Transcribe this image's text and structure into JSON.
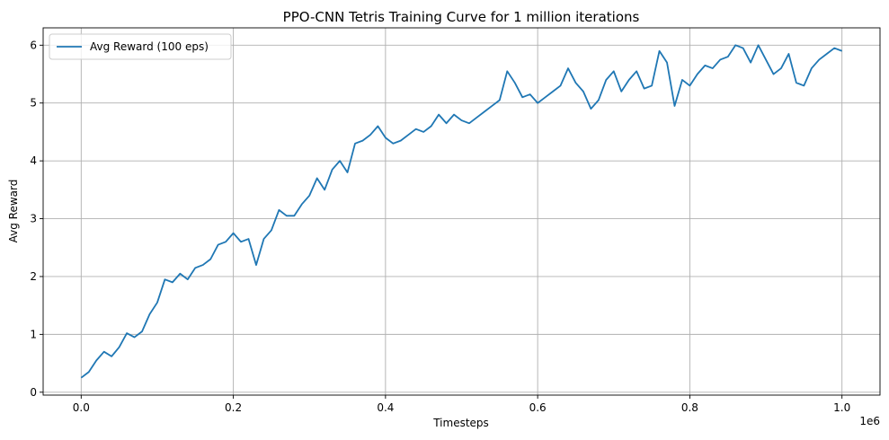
{
  "chart_data": {
    "type": "line",
    "title": "PPO-CNN Tetris Training Curve for 1 million iterations",
    "xlabel": "Timesteps",
    "ylabel": "Avg Reward",
    "x_offset_label": "1e6",
    "xlim": [
      -0.05,
      1.05
    ],
    "ylim": [
      -0.05,
      6.3
    ],
    "x_ticks": [
      0.0,
      0.2,
      0.4,
      0.6,
      0.8,
      1.0
    ],
    "x_tick_labels": [
      "0.0",
      "0.2",
      "0.4",
      "0.6",
      "0.8",
      "1.0"
    ],
    "y_ticks": [
      0,
      1,
      2,
      3,
      4,
      5,
      6
    ],
    "y_tick_labels": [
      "0",
      "1",
      "2",
      "3",
      "4",
      "5",
      "6"
    ],
    "grid": true,
    "legend_position": "upper-left",
    "colors": {
      "series": "#1f77b4",
      "grid": "#b0b0b0"
    },
    "series": [
      {
        "name": "Avg Reward (100 eps)",
        "x": [
          0.0,
          0.01,
          0.02,
          0.03,
          0.04,
          0.05,
          0.06,
          0.07,
          0.08,
          0.09,
          0.1,
          0.11,
          0.12,
          0.13,
          0.14,
          0.15,
          0.16,
          0.17,
          0.18,
          0.19,
          0.2,
          0.21,
          0.22,
          0.23,
          0.24,
          0.25,
          0.26,
          0.27,
          0.28,
          0.29,
          0.3,
          0.31,
          0.32,
          0.33,
          0.34,
          0.35,
          0.36,
          0.37,
          0.38,
          0.39,
          0.4,
          0.41,
          0.42,
          0.43,
          0.44,
          0.45,
          0.46,
          0.47,
          0.48,
          0.49,
          0.5,
          0.51,
          0.52,
          0.53,
          0.54,
          0.55,
          0.56,
          0.57,
          0.58,
          0.59,
          0.6,
          0.61,
          0.62,
          0.63,
          0.64,
          0.65,
          0.66,
          0.67,
          0.68,
          0.69,
          0.7,
          0.71,
          0.72,
          0.73,
          0.74,
          0.75,
          0.76,
          0.77,
          0.78,
          0.79,
          0.8,
          0.81,
          0.82,
          0.83,
          0.84,
          0.85,
          0.86,
          0.87,
          0.88,
          0.89,
          0.9,
          0.91,
          0.92,
          0.93,
          0.94,
          0.95,
          0.96,
          0.97,
          0.98,
          0.99,
          1.0
        ],
        "y": [
          0.25,
          0.35,
          0.55,
          0.7,
          0.62,
          0.78,
          1.02,
          0.95,
          1.05,
          1.35,
          1.55,
          1.95,
          1.9,
          2.05,
          1.95,
          2.15,
          2.2,
          2.3,
          2.55,
          2.6,
          2.75,
          2.6,
          2.65,
          2.2,
          2.65,
          2.8,
          3.15,
          3.05,
          3.05,
          3.25,
          3.4,
          3.7,
          3.5,
          3.85,
          4.0,
          3.8,
          4.3,
          4.35,
          4.45,
          4.6,
          4.4,
          4.3,
          4.35,
          4.45,
          4.55,
          4.5,
          4.6,
          4.8,
          4.65,
          4.8,
          4.7,
          4.65,
          4.75,
          4.85,
          4.95,
          5.05,
          5.55,
          5.35,
          5.1,
          5.15,
          5.0,
          5.1,
          5.2,
          5.3,
          5.6,
          5.35,
          5.2,
          4.9,
          5.05,
          5.4,
          5.55,
          5.2,
          5.4,
          5.55,
          5.25,
          5.3,
          5.9,
          5.7,
          4.95,
          5.4,
          5.3,
          5.5,
          5.65,
          5.6,
          5.75,
          5.8,
          6.0,
          5.95,
          5.7,
          6.0,
          5.75,
          5.5,
          5.6,
          5.85,
          5.35,
          5.3,
          5.6,
          5.75,
          5.85,
          5.95,
          5.9
        ]
      }
    ]
  }
}
